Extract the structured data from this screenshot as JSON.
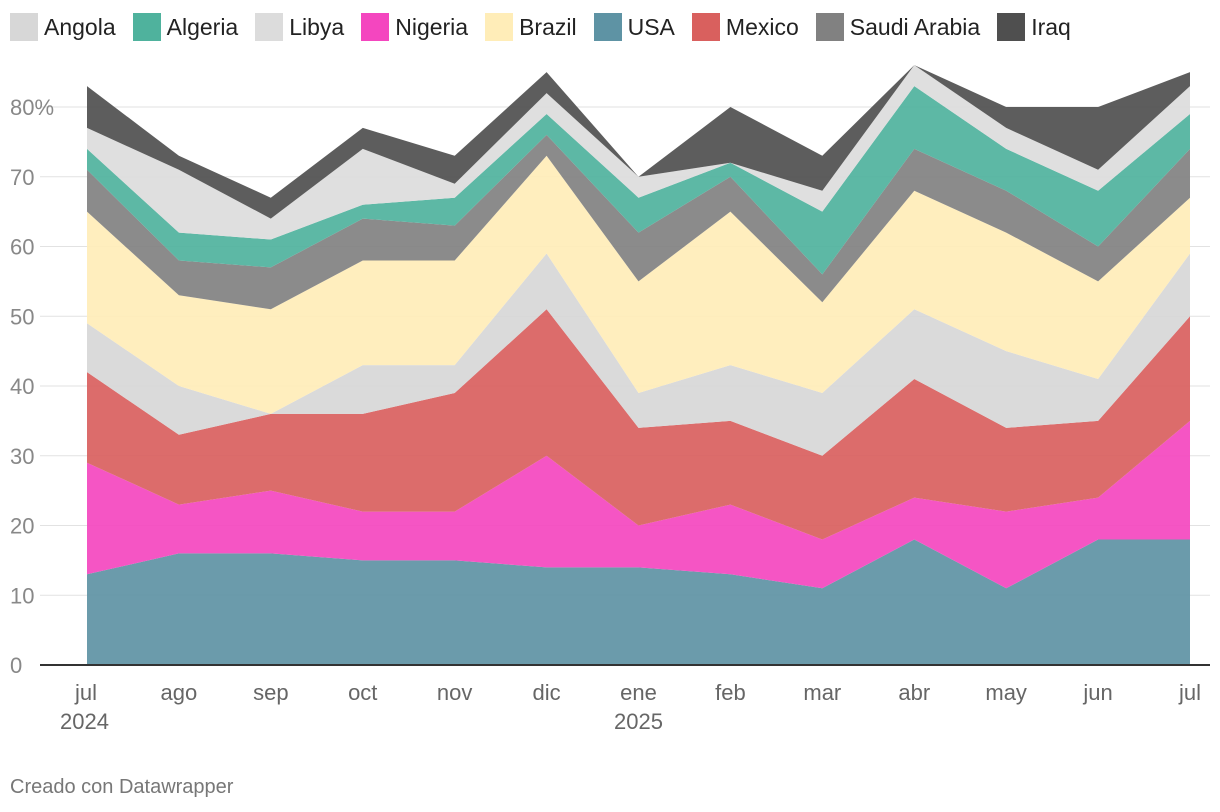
{
  "chart_data": {
    "type": "area",
    "stacked": true,
    "categories": [
      "jul",
      "ago",
      "sep",
      "oct",
      "nov",
      "dic",
      "ene",
      "feb",
      "mar",
      "abr",
      "may",
      "jun",
      "jul"
    ],
    "year_labels": [
      "2024",
      "",
      "",
      "",
      "",
      "",
      "2025",
      "",
      "",
      "",
      "",
      "",
      ""
    ],
    "y_ticks": [
      "0",
      "10",
      "20",
      "30",
      "40",
      "50",
      "60",
      "70",
      "80%"
    ],
    "ylim": [
      0,
      87
    ],
    "grid": true,
    "legend_position": "top-left",
    "series": [
      {
        "name": "USA",
        "color": "#5e93a4",
        "values": [
          13,
          16,
          16,
          15,
          15,
          14,
          14,
          13,
          11,
          18,
          11,
          18,
          18
        ]
      },
      {
        "name": "Nigeria",
        "color": "#f446bf",
        "values": [
          16,
          7,
          9,
          7,
          7,
          16,
          6,
          10,
          7,
          6,
          11,
          6,
          17
        ]
      },
      {
        "name": "Mexico",
        "color": "#d9605e",
        "values": [
          13,
          10,
          11,
          14,
          17,
          21,
          14,
          12,
          12,
          17,
          12,
          11,
          15
        ]
      },
      {
        "name": "Angola",
        "color": "#d7d7d7",
        "values": [
          7,
          7,
          0,
          7,
          4,
          8,
          5,
          8,
          9,
          10,
          11,
          6,
          9
        ]
      },
      {
        "name": "Brazil",
        "color": "#ffedb8",
        "values": [
          16,
          13,
          15,
          15,
          15,
          14,
          16,
          22,
          13,
          17,
          17,
          14,
          8
        ]
      },
      {
        "name": "Saudi Arabia",
        "color": "#818181",
        "values": [
          6,
          5,
          6,
          6,
          5,
          3,
          7,
          5,
          4,
          6,
          6,
          5,
          7
        ]
      },
      {
        "name": "Algeria",
        "color": "#4fb29d",
        "values": [
          3,
          4,
          4,
          2,
          4,
          3,
          5,
          2,
          9,
          9,
          6,
          8,
          5
        ]
      },
      {
        "name": "Libya",
        "color": "#dcdcdc",
        "values": [
          3,
          9,
          3,
          8,
          2,
          3,
          3,
          0,
          3,
          3,
          3,
          3,
          4
        ]
      },
      {
        "name": "Iraq",
        "color": "#4f4f4f",
        "values": [
          6,
          2,
          3,
          3,
          4,
          3,
          0,
          8,
          5,
          0,
          3,
          9,
          2
        ]
      }
    ]
  },
  "legend": [
    {
      "label": "Angola",
      "color": "#d7d7d7"
    },
    {
      "label": "Algeria",
      "color": "#4fb29d"
    },
    {
      "label": "Libya",
      "color": "#dcdcdc"
    },
    {
      "label": "Nigeria",
      "color": "#f446bf"
    },
    {
      "label": "Brazil",
      "color": "#ffedb8"
    },
    {
      "label": "USA",
      "color": "#5e93a4"
    },
    {
      "label": "Mexico",
      "color": "#d9605e"
    },
    {
      "label": "Saudi Arabia",
      "color": "#818181"
    },
    {
      "label": "Iraq",
      "color": "#4f4f4f"
    }
  ],
  "footer": {
    "credit": "Creado con Datawrapper"
  }
}
